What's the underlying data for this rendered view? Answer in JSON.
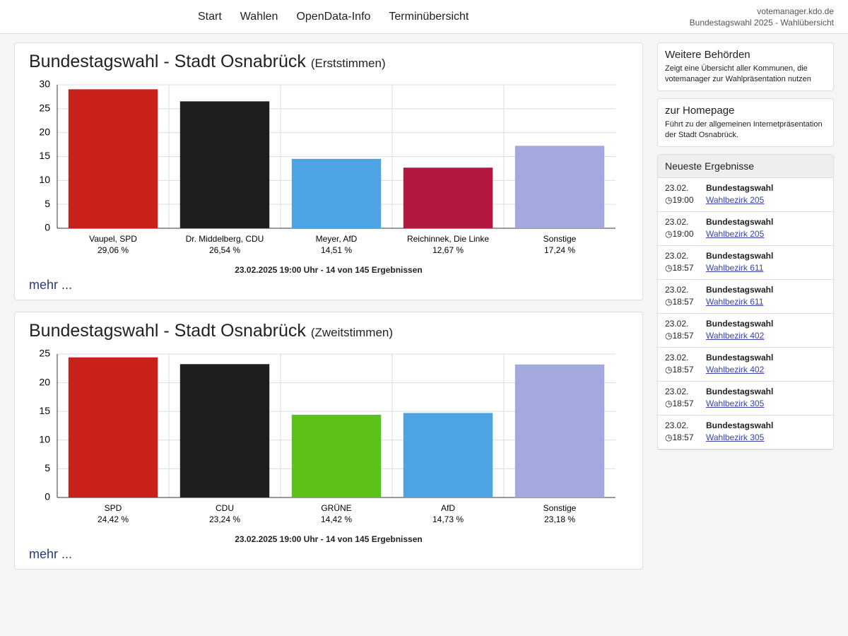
{
  "browser": {
    "url": "votemanager.kdo.de",
    "tab": "Bundestagswahl 2025 - Wahlübersicht"
  },
  "nav": [
    "Start",
    "Wahlen",
    "OpenData-Info",
    "Terminübersicht"
  ],
  "chart_data": [
    {
      "type": "bar",
      "title": "Bundestagswahl - Stadt Osnabrück",
      "subtitle": "(Erststimmen)",
      "categories": [
        "Vaupel, SPD",
        "Dr. Middelberg, CDU",
        "Meyer, AfD",
        "Reichinnek, Die Linke",
        "Sonstige"
      ],
      "values": [
        29.06,
        26.54,
        14.51,
        12.67,
        17.24
      ],
      "value_labels": [
        "29,06 %",
        "26,54 %",
        "14,51 %",
        "12,67 %",
        "17,24 %"
      ],
      "colors": [
        "#c8201a",
        "#1e1e1e",
        "#4ea4e2",
        "#b3173d",
        "#a3a9dc"
      ],
      "ylim": [
        0,
        30
      ],
      "yticks": [
        0,
        5,
        10,
        15,
        20,
        25,
        30
      ],
      "grid": true,
      "note": "23.02.2025 19:00 Uhr - 14 von 145 Ergebnissen",
      "more": "mehr ..."
    },
    {
      "type": "bar",
      "title": "Bundestagswahl - Stadt Osnabrück",
      "subtitle": "(Zweitstimmen)",
      "categories": [
        "SPD",
        "CDU",
        "GRÜNE",
        "AfD",
        "Sonstige"
      ],
      "values": [
        24.42,
        23.24,
        14.42,
        14.73,
        23.18
      ],
      "value_labels": [
        "24,42 %",
        "23,24 %",
        "14,42 %",
        "14,73 %",
        "23,18 %"
      ],
      "colors": [
        "#c8201a",
        "#1e1e1e",
        "#5cc21a",
        "#4ea4e2",
        "#a3a9dc"
      ],
      "ylim": [
        0,
        25
      ],
      "yticks": [
        0,
        5,
        10,
        15,
        20,
        25
      ],
      "grid": true,
      "note": "23.02.2025 19:00 Uhr - 14 von 145 Ergebnissen",
      "more": "mehr ..."
    }
  ],
  "sidebar": {
    "boxes": [
      {
        "title": "Weitere Behörden",
        "text": "Zeigt eine Übersicht aller Kommunen, die votemanager zur Wahlpräsentation nutzen"
      },
      {
        "title": "zur Homepage",
        "text": "Führt zu der allgemeinen Internetpräsentation der Stadt Osnabrück."
      }
    ],
    "latest": {
      "title": "Neueste Ergebnisse",
      "items": [
        {
          "date": "23.02.",
          "time": "19:00",
          "election": "Bundestagswahl",
          "link": "Wahlbezirk 205"
        },
        {
          "date": "23.02.",
          "time": "19:00",
          "election": "Bundestagswahl",
          "link": "Wahlbezirk 205"
        },
        {
          "date": "23.02.",
          "time": "18:57",
          "election": "Bundestagswahl",
          "link": "Wahlbezirk 611"
        },
        {
          "date": "23.02.",
          "time": "18:57",
          "election": "Bundestagswahl",
          "link": "Wahlbezirk 611"
        },
        {
          "date": "23.02.",
          "time": "18:57",
          "election": "Bundestagswahl",
          "link": "Wahlbezirk 402"
        },
        {
          "date": "23.02.",
          "time": "18:57",
          "election": "Bundestagswahl",
          "link": "Wahlbezirk 402"
        },
        {
          "date": "23.02.",
          "time": "18:57",
          "election": "Bundestagswahl",
          "link": "Wahlbezirk 305"
        },
        {
          "date": "23.02.",
          "time": "18:57",
          "election": "Bundestagswahl",
          "link": "Wahlbezirk 305"
        }
      ]
    }
  }
}
